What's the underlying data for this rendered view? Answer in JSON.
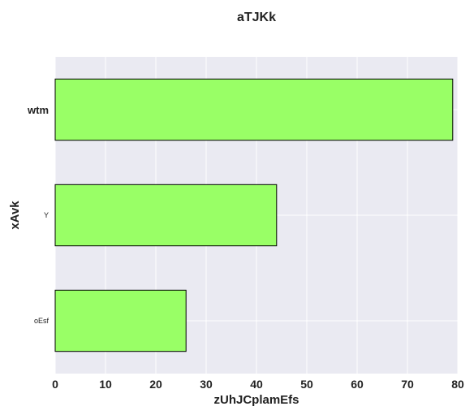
{
  "chart_data": {
    "type": "bar",
    "orientation": "horizontal",
    "title": "aTJKk",
    "xlabel": "zUhJCplamEfs",
    "ylabel": "xAvk",
    "categories": [
      "wtm",
      "Y",
      "oEsf"
    ],
    "values": [
      79,
      44,
      26
    ],
    "xlim": [
      0,
      80
    ],
    "xticks": [
      "0",
      "10",
      "20",
      "30",
      "40",
      "50",
      "60",
      "70",
      "80"
    ],
    "grid": true,
    "bar_color": "#99ff66",
    "bar_edge_color": "#000000",
    "plot_background": "#eaeaf2"
  }
}
